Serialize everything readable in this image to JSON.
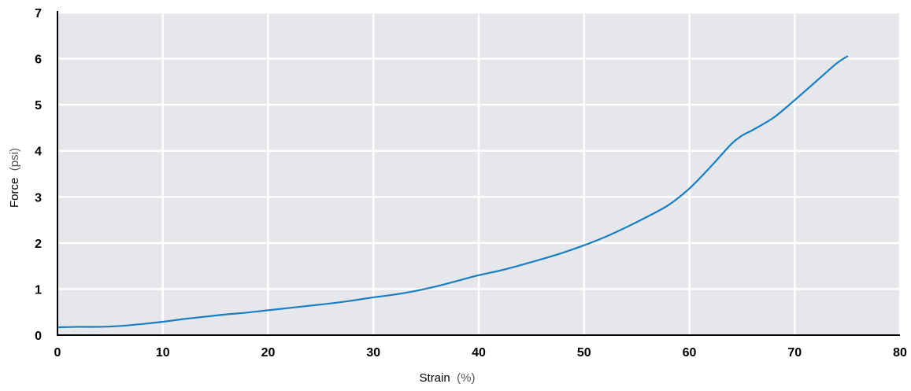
{
  "chart_data": {
    "type": "line",
    "title": "",
    "xlabel": "Strain",
    "xlabel_unit": "(%)",
    "ylabel": "Force",
    "ylabel_unit": "(psi)",
    "xlim": [
      0,
      80
    ],
    "ylim": [
      0,
      7
    ],
    "x_ticks": [
      0,
      10,
      20,
      30,
      40,
      50,
      60,
      70,
      80
    ],
    "y_ticks": [
      0,
      1,
      2,
      3,
      4,
      5,
      6,
      7
    ],
    "grid": true,
    "colors": {
      "plot_background": "#e5e7ea",
      "grid": "#ffffff",
      "axis": "#000000",
      "line": "#1a7fc1"
    },
    "series": [
      {
        "x": [
          0,
          2,
          4,
          6,
          8,
          10,
          12,
          14,
          16,
          18,
          20,
          22,
          24,
          26,
          28,
          30,
          32,
          34,
          36,
          38,
          40,
          42,
          44,
          46,
          48,
          50,
          52,
          54,
          56,
          58,
          60,
          62,
          64,
          65,
          66,
          68,
          70,
          72,
          74,
          75
        ],
        "y": [
          0.17,
          0.18,
          0.18,
          0.2,
          0.24,
          0.29,
          0.35,
          0.4,
          0.45,
          0.49,
          0.54,
          0.59,
          0.64,
          0.69,
          0.75,
          0.82,
          0.88,
          0.96,
          1.06,
          1.18,
          1.3,
          1.4,
          1.52,
          1.65,
          1.79,
          1.95,
          2.13,
          2.34,
          2.57,
          2.82,
          3.18,
          3.65,
          4.15,
          4.33,
          4.45,
          4.72,
          5.1,
          5.5,
          5.9,
          6.05
        ]
      }
    ]
  }
}
